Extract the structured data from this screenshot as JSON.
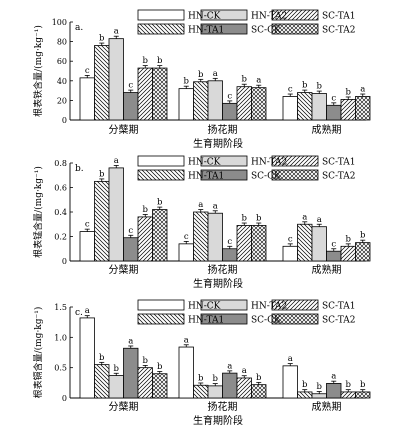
{
  "legend": [
    "HN-CK",
    "HN-TA1",
    "HN-TA2",
    "SC-CK",
    "SC-TA1",
    "SC-TA2"
  ],
  "patterns": [
    "white",
    "hatch-back",
    "gray",
    "dark",
    "hatch-fwd",
    "cross"
  ],
  "colors": {
    "gray": "#d9d9d9",
    "dark": "#8c8c8c",
    "stroke": "#000000"
  },
  "chart_data": [
    {
      "type": "bar",
      "panel_label": "a.",
      "ylabel": "根表铁含量/(mg·kg⁻¹)",
      "xlabel": "生育期阶段",
      "categories": [
        "分蘖期",
        "扬花期",
        "成熟期"
      ],
      "ylim": [
        0,
        100
      ],
      "yticks": [
        "0",
        "20",
        "40",
        "60",
        "80",
        "100"
      ],
      "series": [
        {
          "name": "HN-CK",
          "values": [
            43,
            32,
            24
          ],
          "sig": [
            "c",
            "b",
            "c"
          ]
        },
        {
          "name": "HN-TA1",
          "values": [
            76,
            39,
            28
          ],
          "sig": [
            "b",
            "b",
            "b"
          ]
        },
        {
          "name": "HN-TA2",
          "values": [
            83,
            40,
            27
          ],
          "sig": [
            "a",
            "a",
            "b"
          ]
        },
        {
          "name": "SC-CK",
          "values": [
            28,
            17,
            15
          ],
          "sig": [
            "c",
            "c",
            "c"
          ]
        },
        {
          "name": "SC-TA1",
          "values": [
            53,
            34,
            21
          ],
          "sig": [
            "b",
            "b",
            "b"
          ]
        },
        {
          "name": "SC-TA2",
          "values": [
            53,
            33,
            24
          ],
          "sig": [
            "b",
            "a",
            "a"
          ]
        }
      ]
    },
    {
      "type": "bar",
      "panel_label": "b.",
      "ylabel": "根表锰含量/(mg·kg⁻¹)",
      "xlabel": "生育期阶段",
      "categories": [
        "分蘖期",
        "扬花期",
        "成熟期"
      ],
      "ylim": [
        0,
        0.8
      ],
      "yticks": [
        "0",
        "0.2",
        "0.4",
        "0.6",
        "0.8"
      ],
      "series": [
        {
          "name": "HN-CK",
          "values": [
            0.24,
            0.14,
            0.12
          ],
          "sig": [
            "c",
            "c",
            "c"
          ]
        },
        {
          "name": "HN-TA1",
          "values": [
            0.65,
            0.4,
            0.3
          ],
          "sig": [
            "b",
            "a",
            "a"
          ]
        },
        {
          "name": "HN-TA2",
          "values": [
            0.76,
            0.39,
            0.28
          ],
          "sig": [
            "a",
            "a",
            "a"
          ]
        },
        {
          "name": "SC-CK",
          "values": [
            0.19,
            0.1,
            0.08
          ],
          "sig": [
            "c",
            "c",
            "c"
          ]
        },
        {
          "name": "SC-TA1",
          "values": [
            0.36,
            0.29,
            0.12
          ],
          "sig": [
            "b",
            "b",
            "b"
          ]
        },
        {
          "name": "SC-TA2",
          "values": [
            0.42,
            0.29,
            0.15
          ],
          "sig": [
            "b",
            "b",
            "b"
          ]
        }
      ]
    },
    {
      "type": "bar",
      "panel_label": "c.",
      "ylabel": "根表镉含量/(mg·kg⁻¹)",
      "xlabel": "生育期阶段",
      "categories": [
        "分蘖期",
        "扬花期",
        "成熟期"
      ],
      "ylim": [
        0,
        1.5
      ],
      "yticks": [
        "0",
        "0.5",
        "1.0",
        "1.5"
      ],
      "series": [
        {
          "name": "HN-CK",
          "values": [
            1.32,
            0.84,
            0.53
          ],
          "sig": [
            "a",
            "a",
            "a"
          ]
        },
        {
          "name": "HN-TA1",
          "values": [
            0.55,
            0.21,
            0.1
          ],
          "sig": [
            "b",
            "b",
            "b"
          ]
        },
        {
          "name": "HN-TA2",
          "values": [
            0.37,
            0.2,
            0.07
          ],
          "sig": [
            "b",
            "b",
            "b"
          ]
        },
        {
          "name": "SC-CK",
          "values": [
            0.82,
            0.41,
            0.24
          ],
          "sig": [
            "a",
            "a",
            "a"
          ]
        },
        {
          "name": "SC-TA1",
          "values": [
            0.5,
            0.33,
            0.1
          ],
          "sig": [
            "b",
            "a",
            "b"
          ]
        },
        {
          "name": "SC-TA2",
          "values": [
            0.4,
            0.22,
            0.1
          ],
          "sig": [
            "b",
            "b",
            "b"
          ]
        }
      ]
    }
  ]
}
